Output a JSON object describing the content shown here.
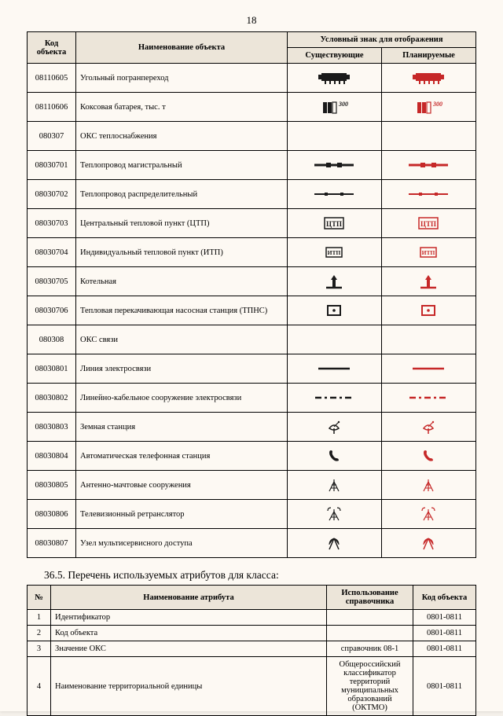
{
  "page_number": "18",
  "table1": {
    "headers": {
      "code": "Код объекта",
      "name": "Наименование объекта",
      "group": "Условный знак для отображения",
      "existing": "Существующие",
      "planned": "Планируемые"
    },
    "colors": {
      "existing": "#1a1a1a",
      "planned": "#c62828"
    },
    "rows": [
      {
        "code": "08110605",
        "name": "Угольный погранпереход",
        "icon": "train"
      },
      {
        "code": "08110606",
        "name": "Коксовая батарея, тыс. т",
        "icon": "coke"
      },
      {
        "code": "080307",
        "name": "ОКС теплоснабжения",
        "icon": "none"
      },
      {
        "code": "08030701",
        "name": "Теплопровод магистральный",
        "icon": "pipe-main"
      },
      {
        "code": "08030702",
        "name": "Теплопровод распределительный",
        "icon": "pipe-dist"
      },
      {
        "code": "08030703",
        "name": "Центральный тепловой пункт (ЦТП)",
        "icon": "ctp"
      },
      {
        "code": "08030704",
        "name": "Индивидуальный тепловой пункт (ИТП)",
        "icon": "itp"
      },
      {
        "code": "08030705",
        "name": "Котельная",
        "icon": "boiler"
      },
      {
        "code": "08030706",
        "name": "Тепловая перекачивающая насосная станция (ТПНС)",
        "icon": "tpns"
      },
      {
        "code": "080308",
        "name": "ОКС связи",
        "icon": "none"
      },
      {
        "code": "08030801",
        "name": "Линия электросвязи",
        "icon": "line-solid"
      },
      {
        "code": "08030802",
        "name": "Линейно-кабельное сооружение электросвязи",
        "icon": "line-dash"
      },
      {
        "code": "08030803",
        "name": "Земная станция",
        "icon": "dish"
      },
      {
        "code": "08030804",
        "name": "Автоматическая телефонная станция",
        "icon": "phone"
      },
      {
        "code": "08030805",
        "name": "Антенно-мачтовые сооружения",
        "icon": "tower"
      },
      {
        "code": "08030806",
        "name": "Телевизионный ретранслятор",
        "icon": "tv-tower"
      },
      {
        "code": "08030807",
        "name": "Узел мультисервисного доступа",
        "icon": "msan"
      }
    ]
  },
  "section_title": "36.5. Перечень используемых атрибутов для класса:",
  "table2": {
    "headers": {
      "num": "№",
      "attr": "Наименование атрибута",
      "ref": "Использование справочника",
      "obj": "Код объекта"
    },
    "rows": [
      {
        "num": "1",
        "attr": "Идентификатор",
        "ref": "",
        "obj": "0801-0811"
      },
      {
        "num": "2",
        "attr": "Код объекта",
        "ref": "",
        "obj": "0801-0811"
      },
      {
        "num": "3",
        "attr": "Значение ОКС",
        "ref": "справочник 08-1",
        "obj": "0801-0811"
      },
      {
        "num": "4",
        "attr": "Наименование территориальной единицы",
        "ref": "Общероссийский классификатор территорий муниципальных образований (ОКТМО)",
        "obj": "0801-0811"
      }
    ]
  }
}
